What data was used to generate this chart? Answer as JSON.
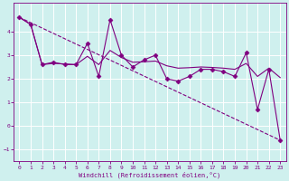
{
  "xlabel": "Windchill (Refroidissement éolien,°C)",
  "background_color": "#cff0ee",
  "line_color": "#800080",
  "xlim": [
    -0.5,
    23.5
  ],
  "ylim": [
    -1.5,
    5.2
  ],
  "yticks": [
    -1,
    0,
    1,
    2,
    3,
    4
  ],
  "xticks": [
    0,
    1,
    2,
    3,
    4,
    5,
    6,
    7,
    8,
    9,
    10,
    11,
    12,
    13,
    14,
    15,
    16,
    17,
    18,
    19,
    20,
    21,
    22,
    23
  ],
  "series_main": {
    "x": [
      0,
      1,
      2,
      3,
      4,
      5,
      6,
      7,
      8,
      9,
      10,
      11,
      12,
      13,
      14,
      15,
      16,
      17,
      18,
      19,
      20,
      21,
      22,
      23
    ],
    "y": [
      4.6,
      4.3,
      2.6,
      2.7,
      2.6,
      2.6,
      3.5,
      2.1,
      4.5,
      3.0,
      2.5,
      2.8,
      3.0,
      2.0,
      1.9,
      2.1,
      2.4,
      2.4,
      2.3,
      2.1,
      3.1,
      0.7,
      2.4,
      -0.6
    ],
    "marker": "D",
    "markersize": 2.5,
    "linewidth": 0.8,
    "linestyle": "-"
  },
  "series_trend": {
    "x": [
      0,
      23
    ],
    "y": [
      4.6,
      -0.6
    ],
    "linewidth": 0.8,
    "linestyle": "--"
  },
  "series_smooth": {
    "x": [
      0,
      1,
      2,
      3,
      4,
      5,
      6,
      7,
      8,
      9,
      10,
      11,
      12,
      13,
      14,
      15,
      16,
      17,
      18,
      19,
      20,
      21,
      22,
      23
    ],
    "y": [
      4.6,
      4.3,
      2.6,
      2.65,
      2.63,
      2.6,
      2.95,
      2.6,
      3.2,
      2.9,
      2.7,
      2.72,
      2.75,
      2.55,
      2.45,
      2.47,
      2.5,
      2.48,
      2.45,
      2.4,
      2.65,
      2.1,
      2.45,
      2.05
    ],
    "linewidth": 0.8,
    "linestyle": "-"
  },
  "grid_color": "#ffffff",
  "grid_linewidth": 0.7,
  "tick_labelsize": 4.5,
  "xlabel_fontsize": 5.0
}
